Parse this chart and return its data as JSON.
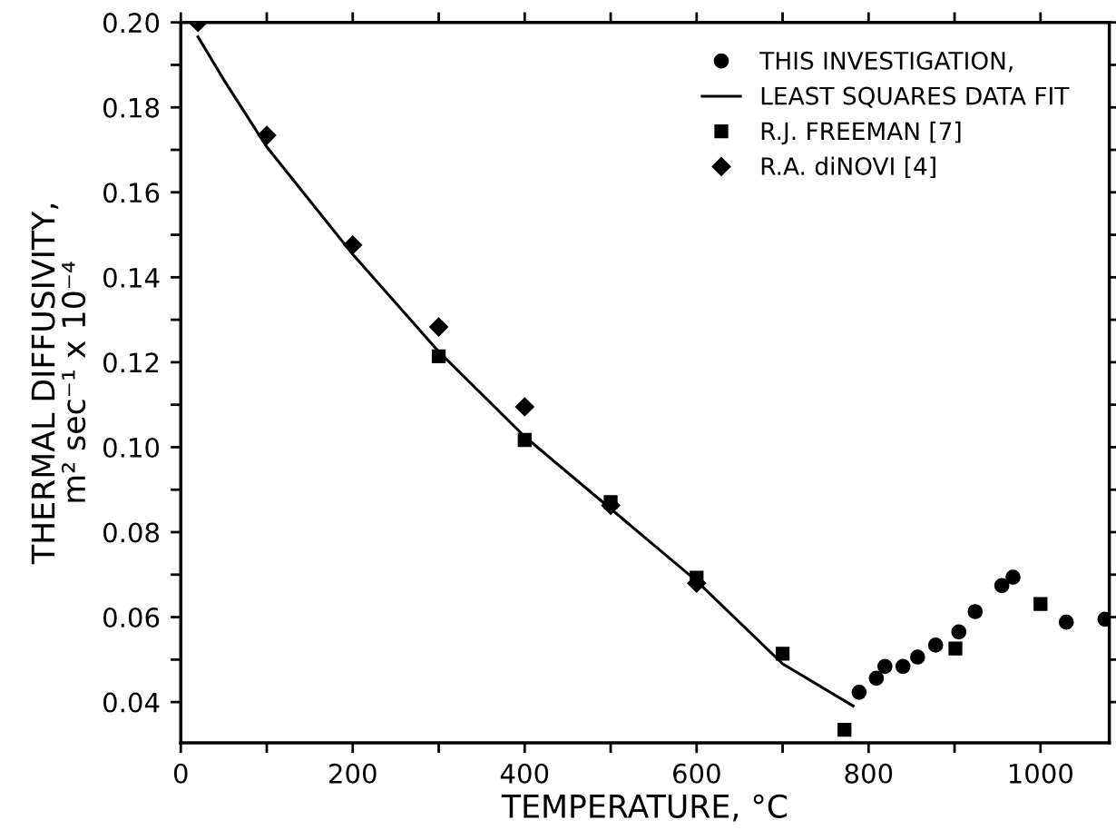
{
  "chart_data": {
    "type": "scatter",
    "xlabel": "TEMPERATURE, °C",
    "ylabel": "THERMAL DIFFUSIVITY,\nm² sec⁻¹ x 10⁻⁴",
    "xlim": [
      0,
      1080
    ],
    "ylim": [
      0.0304,
      0.2
    ],
    "xticks": [
      0,
      {
        "value": 100,
        "label": null
      },
      200,
      {
        "value": 300,
        "label": null
      },
      400,
      {
        "value": 500,
        "label": null
      },
      600,
      {
        "value": 700,
        "label": null
      },
      800,
      {
        "value": 900,
        "label": null
      },
      1000
    ],
    "yticks": [
      0.04,
      {
        "value": 0.05,
        "label": null
      },
      0.06,
      {
        "value": 0.07,
        "label": null
      },
      0.08,
      {
        "value": 0.09,
        "label": null
      },
      {
        "value": 0.1,
        "label": "0.10"
      },
      {
        "value": 0.11,
        "label": null
      },
      0.12,
      {
        "value": 0.13,
        "label": null
      },
      0.14,
      {
        "value": 0.15,
        "label": null
      },
      0.16,
      {
        "value": 0.17,
        "label": null
      },
      0.18,
      {
        "value": 0.19,
        "label": null
      },
      {
        "value": 0.2,
        "label": "0.20"
      }
    ],
    "legend": "top right",
    "series": [
      {
        "name": "THIS INVESTIGATION,",
        "type": "scatter",
        "marker": "circle",
        "color": "#000000",
        "x": [
          789,
          809,
          819,
          840,
          857,
          878,
          905,
          924,
          955,
          968,
          1030,
          1075
        ],
        "values": [
          0.0423,
          0.0456,
          0.0484,
          0.0484,
          0.0506,
          0.0534,
          0.0565,
          0.0613,
          0.0674,
          0.0694,
          0.0588,
          0.0595
        ]
      },
      {
        "name": "LEAST SQUARES DATA FIT",
        "type": "line",
        "marker": "none",
        "color": "#000000",
        "x": [
          20,
          50,
          100,
          200,
          300,
          400,
          500,
          600,
          700,
          782
        ],
        "values": [
          0.1966,
          0.1865,
          0.1707,
          0.1454,
          0.1225,
          0.1025,
          0.0855,
          0.0685,
          0.049,
          0.0391
        ]
      },
      {
        "name": "R.J. FREEMAN [7]",
        "type": "scatter",
        "marker": "square",
        "color": "#000000",
        "x": [
          300,
          400,
          500,
          600,
          700,
          772,
          901,
          1000
        ],
        "values": [
          0.1214,
          0.1017,
          0.0871,
          0.0693,
          0.0514,
          0.0335,
          0.0526,
          0.0631
        ]
      },
      {
        "name": "R.A. diNOVI [4]",
        "type": "scatter",
        "marker": "diamond",
        "color": "#000000",
        "x": [
          20,
          100,
          200,
          300,
          400,
          500,
          600
        ],
        "values": [
          0.2,
          0.1734,
          0.1476,
          0.1283,
          0.1095,
          0.0863,
          0.068
        ]
      }
    ]
  }
}
